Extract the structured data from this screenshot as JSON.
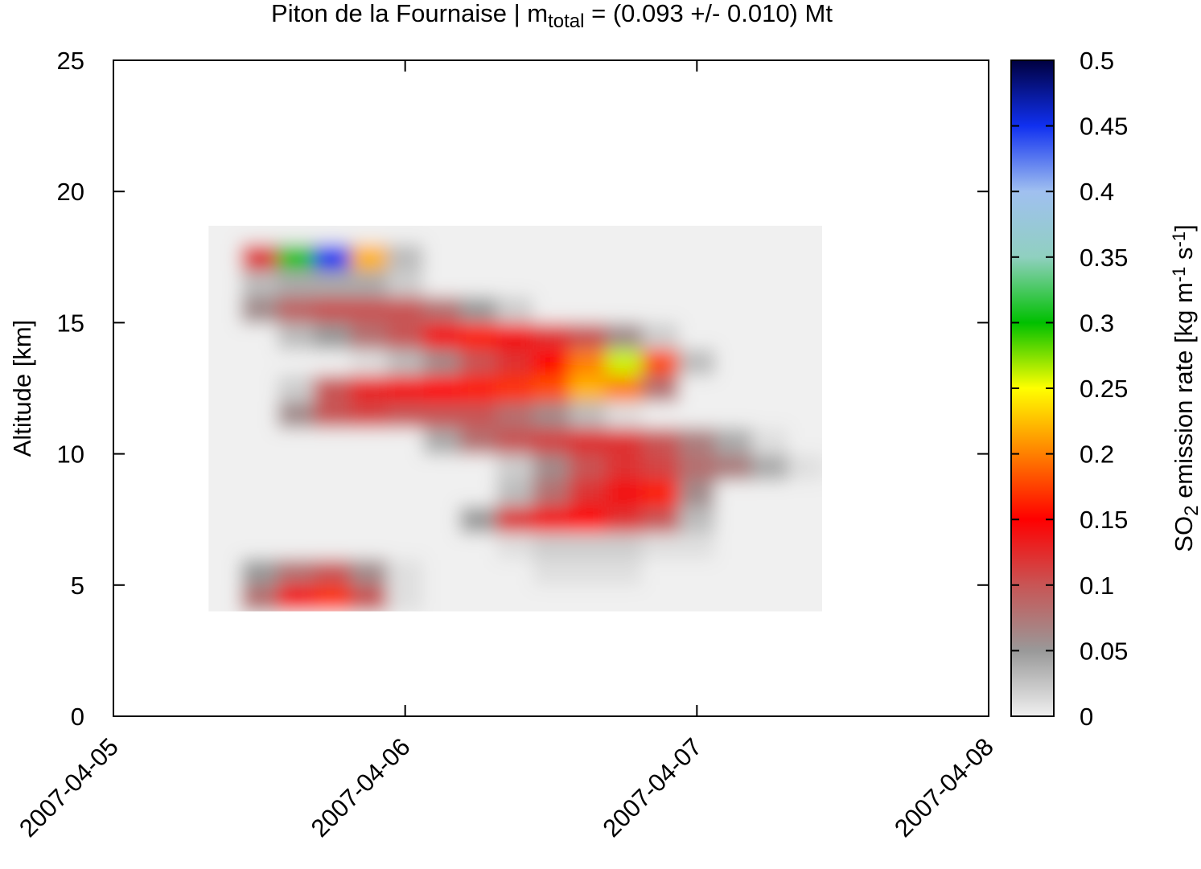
{
  "chart_data": {
    "type": "heatmap",
    "title": [
      "Piton de la Fournaise | m",
      "total",
      " = (0.093 +/- 0.010) Mt"
    ],
    "ylabel": "Altitude [km]",
    "zlabel": [
      "SO",
      "2",
      " emission rate [kg m",
      "-1",
      " s",
      "-1",
      "]"
    ],
    "xlim": [
      "2007-04-05",
      "2007-04-08"
    ],
    "xticks": [
      "2007-04-05",
      "2007-04-06",
      "2007-04-07",
      "2007-04-08"
    ],
    "ylim": [
      0,
      25
    ],
    "yticks": [
      0,
      5,
      10,
      15,
      20,
      25
    ],
    "zlim": [
      0,
      0.5
    ],
    "zticks": [
      0,
      0.05,
      0.1,
      0.15,
      0.2,
      0.25,
      0.3,
      0.35,
      0.4,
      0.45,
      0.5
    ],
    "colormap": [
      "#f0f0f0",
      "#999999",
      "#c85555",
      "#ff0000",
      "#ff8000",
      "#ffff00",
      "#00c000",
      "#90d0c0",
      "#a0c0f0",
      "#1030f0",
      "#000040"
    ],
    "x": [
      "2007-04-05 09:00",
      "2007-04-05 12:00",
      "2007-04-05 15:00",
      "2007-04-05 18:00",
      "2007-04-05 21:00",
      "2007-04-06 00:00",
      "2007-04-06 03:00",
      "2007-04-06 06:00",
      "2007-04-06 09:00",
      "2007-04-06 12:00",
      "2007-04-06 15:00",
      "2007-04-06 18:00",
      "2007-04-06 21:00",
      "2007-04-07 00:00",
      "2007-04-07 03:00",
      "2007-04-07 06:00",
      "2007-04-07 09:00"
    ],
    "y": [
      4.5,
      5.5,
      6.5,
      7.5,
      8.5,
      9.5,
      10.5,
      11.5,
      12.5,
      13.5,
      14.5,
      15.5,
      16.5,
      17.5,
      18.5
    ],
    "z": [
      [
        0,
        0.08,
        0.14,
        0.17,
        0.1,
        0.01,
        0,
        0,
        0,
        0,
        0,
        0,
        0,
        0,
        0,
        0,
        0
      ],
      [
        0,
        0.05,
        0.08,
        0.1,
        0.06,
        0.01,
        0,
        0,
        0,
        0.01,
        0.01,
        0.01,
        0,
        0,
        0,
        0,
        0
      ],
      [
        0,
        0,
        0,
        0,
        0,
        0,
        0,
        0,
        0.01,
        0.02,
        0.02,
        0.02,
        0.01,
        0.01,
        0,
        0,
        0
      ],
      [
        0,
        0,
        0,
        0,
        0,
        0,
        0,
        0.05,
        0.12,
        0.14,
        0.15,
        0.12,
        0.1,
        0.03,
        0,
        0,
        0
      ],
      [
        0,
        0,
        0,
        0,
        0,
        0,
        0,
        0,
        0.03,
        0.08,
        0.12,
        0.14,
        0.16,
        0.06,
        0,
        0,
        0
      ],
      [
        0,
        0,
        0,
        0,
        0,
        0,
        0,
        0,
        0.02,
        0.06,
        0.1,
        0.12,
        0.11,
        0.08,
        0.07,
        0.04,
        0.01
      ],
      [
        0,
        0,
        0,
        0,
        0,
        0,
        0.04,
        0.08,
        0.1,
        0.11,
        0.12,
        0.12,
        0.1,
        0.07,
        0.04,
        0.01,
        0
      ],
      [
        0,
        0,
        0.06,
        0.1,
        0.11,
        0.1,
        0.1,
        0.1,
        0.08,
        0.06,
        0.03,
        0.01,
        0,
        0,
        0,
        0,
        0
      ],
      [
        0,
        0,
        0.02,
        0.1,
        0.13,
        0.14,
        0.15,
        0.16,
        0.17,
        0.18,
        0.22,
        0.2,
        0.08,
        0,
        0,
        0,
        0
      ],
      [
        0,
        0,
        0,
        0,
        0.01,
        0.03,
        0.06,
        0.1,
        0.12,
        0.15,
        0.2,
        0.26,
        0.18,
        0.03,
        0,
        0,
        0
      ],
      [
        0,
        0,
        0.03,
        0.05,
        0.08,
        0.1,
        0.14,
        0.16,
        0.14,
        0.12,
        0.1,
        0.06,
        0.02,
        0,
        0,
        0,
        0
      ],
      [
        0,
        0.06,
        0.09,
        0.1,
        0.1,
        0.1,
        0.08,
        0.05,
        0.02,
        0,
        0,
        0,
        0,
        0,
        0,
        0,
        0
      ],
      [
        0,
        0.03,
        0.04,
        0.04,
        0.04,
        0.02,
        0,
        0,
        0,
        0,
        0,
        0,
        0,
        0,
        0,
        0,
        0
      ],
      [
        0,
        0.12,
        0.3,
        0.45,
        0.22,
        0.03,
        0,
        0,
        0,
        0,
        0,
        0,
        0,
        0,
        0,
        0,
        0
      ],
      [
        0,
        0,
        0,
        0,
        0,
        0,
        0,
        0,
        0,
        0,
        0,
        0,
        0,
        0,
        0,
        0,
        0
      ]
    ]
  }
}
